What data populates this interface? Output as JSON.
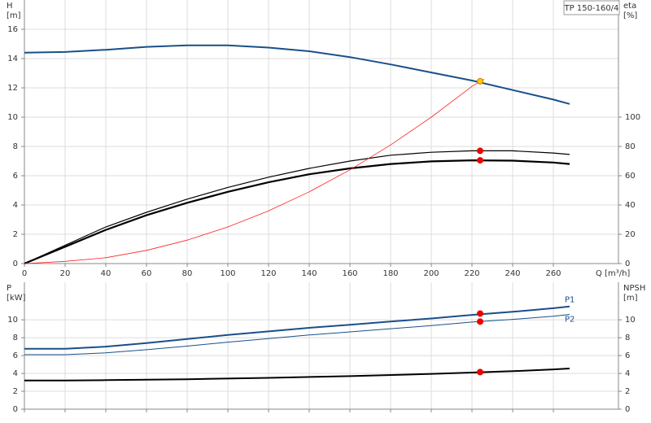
{
  "chart_data": [
    {
      "type": "line",
      "title": "TP 150-160/4",
      "y_label": "H",
      "y_unit": "[m]",
      "y2_label": "eta",
      "y2_unit": "[%]",
      "x_label": "Q [m³/h]",
      "xlim": [
        0,
        292
      ],
      "xticks": [
        0,
        20,
        40,
        60,
        80,
        100,
        120,
        140,
        160,
        180,
        200,
        220,
        240,
        260
      ],
      "xtick_labels": true,
      "ylim": [
        0,
        18
      ],
      "yticks": [
        0,
        2,
        4,
        6,
        8,
        10,
        12,
        14,
        16
      ],
      "y2lim": [
        0,
        180
      ],
      "y2ticks": [
        0,
        20,
        40,
        60,
        80,
        100
      ],
      "grid": true,
      "series": [
        {
          "color": "#1a4f8a",
          "width": 2,
          "x": [
            0,
            20,
            40,
            60,
            80,
            100,
            120,
            140,
            160,
            180,
            200,
            220,
            240,
            260,
            268
          ],
          "values": [
            14.4,
            14.45,
            14.6,
            14.8,
            14.9,
            14.9,
            14.75,
            14.5,
            14.1,
            13.6,
            13.05,
            12.5,
            11.85,
            11.2,
            10.9
          ]
        },
        {
          "color": "#000000",
          "width": 1.2,
          "axis": "y2",
          "x": [
            0,
            20,
            40,
            60,
            80,
            100,
            120,
            140,
            160,
            180,
            200,
            220,
            240,
            260,
            268
          ],
          "values": [
            0,
            12.5,
            25,
            35,
            44,
            52,
            59,
            65,
            70,
            74,
            76,
            77,
            77,
            75.5,
            74.5
          ]
        },
        {
          "color": "#000000",
          "width": 2.2,
          "axis": "y2",
          "x": [
            0,
            20,
            40,
            60,
            80,
            100,
            120,
            140,
            160,
            180,
            200,
            220,
            240,
            260,
            268
          ],
          "values": [
            0,
            11.5,
            23,
            33,
            41.5,
            49,
            55.5,
            61,
            65,
            68,
            69.8,
            70.5,
            70.3,
            69,
            68
          ]
        },
        {
          "color": "#ff2020",
          "width": 0.8,
          "x": [
            0,
            20,
            40,
            60,
            80,
            100,
            120,
            140,
            160,
            180,
            200,
            220,
            226
          ],
          "values": [
            0,
            0.15,
            0.4,
            0.9,
            1.6,
            2.5,
            3.6,
            4.9,
            6.4,
            8.1,
            10.0,
            12.1,
            12.6
          ]
        },
        {
          "type": "point",
          "color": "#ffcc00",
          "stroke": "#e07000",
          "x": [
            224
          ],
          "values": [
            12.45
          ]
        },
        {
          "type": "point",
          "color": "#ee0000",
          "axis": "y2",
          "x": [
            224,
            224
          ],
          "values": [
            77,
            70.5
          ]
        }
      ]
    },
    {
      "type": "line",
      "y_label": "P",
      "y_unit": "[kW]",
      "y2_label": "NPSH",
      "y2_unit": "[m]",
      "xlim": [
        0,
        292
      ],
      "xticks": [
        0,
        20,
        40,
        60,
        80,
        100,
        120,
        140,
        160,
        180,
        200,
        220,
        240,
        260
      ],
      "xtick_labels": false,
      "ylim": [
        0,
        14.2
      ],
      "yticks": [
        0,
        2,
        4,
        6,
        8,
        10
      ],
      "y2lim": [
        0,
        14.2
      ],
      "y2ticks": [
        0,
        2,
        4,
        6,
        8,
        10
      ],
      "grid": true,
      "series": [
        {
          "name": "P1",
          "color": "#1a4f8a",
          "width": 2,
          "x": [
            0,
            20,
            40,
            60,
            80,
            100,
            120,
            140,
            160,
            180,
            200,
            220,
            240,
            260,
            268
          ],
          "values": [
            6.75,
            6.75,
            7.0,
            7.4,
            7.85,
            8.3,
            8.7,
            9.1,
            9.45,
            9.8,
            10.15,
            10.55,
            10.9,
            11.3,
            11.5
          ]
        },
        {
          "name": "P2",
          "color": "#1a4f8a",
          "width": 1,
          "x": [
            0,
            20,
            40,
            60,
            80,
            100,
            120,
            140,
            160,
            180,
            200,
            220,
            240,
            260,
            268
          ],
          "values": [
            6.1,
            6.1,
            6.3,
            6.65,
            7.05,
            7.5,
            7.9,
            8.3,
            8.65,
            9.0,
            9.35,
            9.75,
            10.05,
            10.4,
            10.6
          ]
        },
        {
          "color": "#000000",
          "width": 2,
          "axis": "y2",
          "x": [
            0,
            20,
            40,
            80,
            120,
            160,
            200,
            220,
            240,
            260,
            268
          ],
          "values": [
            3.2,
            3.2,
            3.25,
            3.35,
            3.5,
            3.7,
            3.95,
            4.1,
            4.25,
            4.45,
            4.55
          ]
        },
        {
          "type": "point",
          "color": "#ee0000",
          "x": [
            224,
            224
          ],
          "values": [
            10.7,
            9.8
          ]
        },
        {
          "type": "point",
          "color": "#ee0000",
          "axis": "y2",
          "x": [
            224
          ],
          "values": [
            4.15
          ]
        }
      ]
    }
  ]
}
